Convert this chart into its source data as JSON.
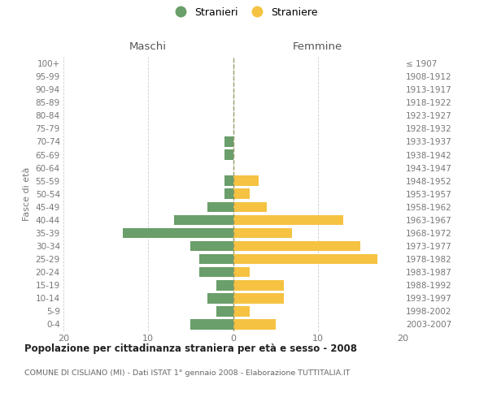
{
  "age_groups": [
    "100+",
    "95-99",
    "90-94",
    "85-89",
    "80-84",
    "75-79",
    "70-74",
    "65-69",
    "60-64",
    "55-59",
    "50-54",
    "45-49",
    "40-44",
    "35-39",
    "30-34",
    "25-29",
    "20-24",
    "15-19",
    "10-14",
    "5-9",
    "0-4"
  ],
  "birth_years": [
    "≤ 1907",
    "1908-1912",
    "1913-1917",
    "1918-1922",
    "1923-1927",
    "1928-1932",
    "1933-1937",
    "1938-1942",
    "1943-1947",
    "1948-1952",
    "1953-1957",
    "1958-1962",
    "1963-1967",
    "1968-1972",
    "1973-1977",
    "1978-1982",
    "1983-1987",
    "1988-1992",
    "1993-1997",
    "1998-2002",
    "2003-2007"
  ],
  "males": [
    0,
    0,
    0,
    0,
    0,
    0,
    1,
    1,
    0,
    1,
    1,
    3,
    7,
    13,
    5,
    4,
    4,
    2,
    3,
    2,
    5
  ],
  "females": [
    0,
    0,
    0,
    0,
    0,
    0,
    0,
    0,
    0,
    3,
    2,
    4,
    13,
    7,
    15,
    17,
    2,
    6,
    6,
    2,
    5
  ],
  "male_color": "#6a9e6a",
  "female_color": "#f5c242",
  "background_color": "#ffffff",
  "grid_color": "#cccccc",
  "title": "Popolazione per cittadinanza straniera per età e sesso - 2008",
  "subtitle": "COMUNE DI CISLIANO (MI) - Dati ISTAT 1° gennaio 2008 - Elaborazione TUTTITALIA.IT",
  "legend_stranieri": "Stranieri",
  "legend_straniere": "Straniere",
  "xlabel_left": "Maschi",
  "xlabel_right": "Femmine",
  "ylabel_left": "Fasce di età",
  "xlim": 20,
  "bar_height": 0.78
}
